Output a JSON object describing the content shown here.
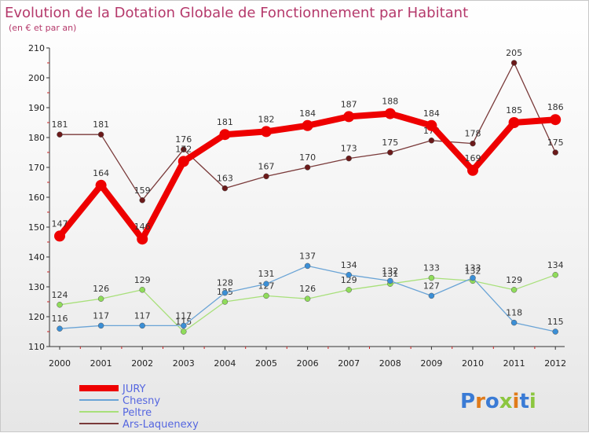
{
  "chart_data": {
    "type": "line",
    "title": "Evolution de la Dotation Globale de Fonctionnement par Habitant",
    "subtitle": "(en € et par an)",
    "xlabel": "",
    "ylabel": "",
    "ylim": [
      110,
      210
    ],
    "yticks": [
      110,
      120,
      130,
      140,
      150,
      160,
      170,
      180,
      190,
      200,
      210
    ],
    "categories": [
      "2000",
      "2001",
      "2002",
      "2003",
      "2004",
      "2005",
      "2006",
      "2007",
      "2008",
      "2009",
      "2010",
      "2011",
      "2012"
    ],
    "grid": false,
    "legend_position": "bottom-left",
    "series": [
      {
        "name": "Ars-Laquenexy",
        "color": "#6b1a1a",
        "line_color": "#7a3a3a",
        "values": [
          181,
          181,
          159,
          176,
          163,
          167,
          170,
          173,
          175,
          179,
          178,
          205,
          175
        ]
      },
      {
        "name": "Peltre",
        "color": "#8fdc5a",
        "line_color": "#a8e07a",
        "values": [
          124,
          126,
          129,
          115,
          125,
          127,
          126,
          129,
          131,
          133,
          132,
          129,
          134
        ]
      },
      {
        "name": "Chesny",
        "color": "#3b8fd6",
        "line_color": "#6aa4d6",
        "values": [
          116,
          117,
          117,
          117,
          128,
          131,
          137,
          134,
          132,
          127,
          133,
          118,
          115
        ]
      },
      {
        "name": "JURY",
        "color": "#ee0000",
        "line_color": "#ee0000",
        "values": [
          147,
          164,
          146,
          172,
          181,
          182,
          184,
          187,
          188,
          184,
          169,
          185,
          186
        ]
      }
    ],
    "legend_order": [
      "JURY",
      "Chesny",
      "Peltre",
      "Ars-Laquenexy"
    ]
  },
  "watermark": "Proxiti"
}
